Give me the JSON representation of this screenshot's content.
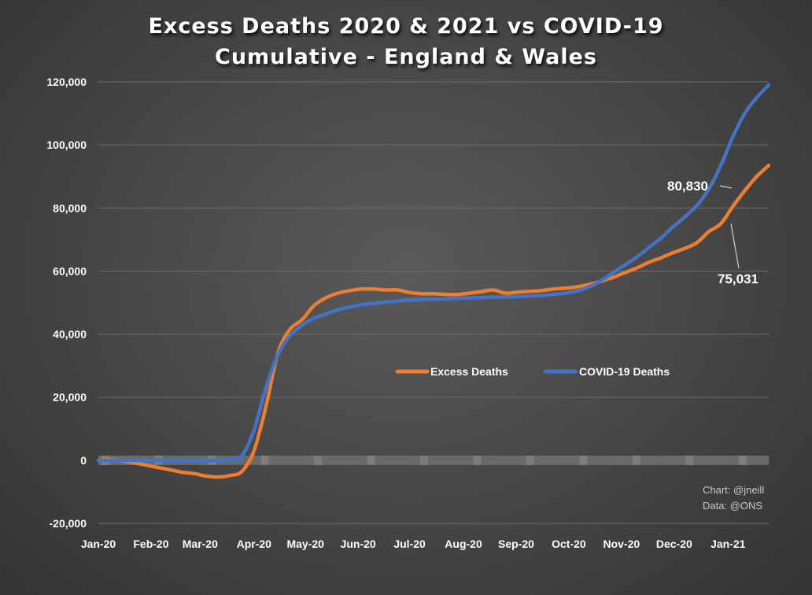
{
  "header": {
    "title_line1": "Excess Deaths 2020 & 2021 vs COVID-19",
    "title_line2": "Cumulative - England & Wales"
  },
  "credits": {
    "chart": "Chart: @jneill",
    "data": "Data: @ONS"
  },
  "colors": {
    "excess": "#ed7d31",
    "covid": "#4472c4",
    "grid": "#6e6e6e",
    "zero_band": "#6a6a6a"
  },
  "chart_data": {
    "type": "line",
    "title": "Excess Deaths 2020 & 2021 vs COVID-19 Cumulative - England & Wales",
    "xlabel": "",
    "ylabel": "",
    "ylim": [
      -20000,
      120000
    ],
    "yticks": [
      -20000,
      0,
      20000,
      40000,
      60000,
      80000,
      100000,
      120000
    ],
    "ytick_labels": [
      "-20,000",
      "0",
      "20,000",
      "40,000",
      "60,000",
      "80,000",
      "100,000",
      "120,000"
    ],
    "x_unit": "week",
    "xlim": [
      0,
      56
    ],
    "x_categories": [
      "Jan-20",
      "Feb-20",
      "Mar-20",
      "Apr-20",
      "May-20",
      "Jun-20",
      "Jul-20",
      "Aug-20",
      "Sep-20",
      "Oct-20",
      "Nov-20",
      "Dec-20",
      "Jan-21"
    ],
    "x_category_week": [
      0,
      4.4,
      8.5,
      13,
      17.3,
      21.7,
      26,
      30.5,
      34.9,
      39.3,
      43.7,
      48.1,
      52.6
    ],
    "grid": true,
    "legend_position": "middle-right",
    "series": [
      {
        "name": "Excess Deaths",
        "x": [
          0,
          1,
          2,
          3,
          4,
          5,
          6,
          7,
          8,
          9,
          10,
          11,
          12,
          13,
          14,
          15,
          16,
          17,
          18,
          19,
          20,
          21,
          22,
          23,
          24,
          25,
          26,
          27,
          28,
          29,
          30,
          31,
          32,
          33,
          34,
          35,
          36,
          37,
          38,
          39,
          40,
          41,
          42,
          43,
          44,
          45,
          46,
          47,
          48,
          49,
          50,
          51,
          52,
          53,
          54,
          55,
          56
        ],
        "y": [
          0,
          300,
          -200,
          -800,
          -1500,
          -2300,
          -3000,
          -3800,
          -4200,
          -5000,
          -5300,
          -4800,
          -3500,
          3000,
          17000,
          34000,
          41500,
          44500,
          49000,
          51500,
          53000,
          53800,
          54300,
          54300,
          54000,
          54000,
          53200,
          52800,
          52800,
          52600,
          52600,
          53000,
          53500,
          54000,
          53000,
          53300,
          53600,
          53800,
          54300,
          54600,
          55000,
          55800,
          56800,
          58000,
          59500,
          61000,
          62800,
          64200,
          65800,
          67200,
          69000,
          72500,
          75031,
          80500,
          85500,
          90000,
          93500
        ]
      },
      {
        "name": "COVID-19 Deaths",
        "x": [
          0,
          1,
          2,
          3,
          4,
          5,
          6,
          7,
          8,
          9,
          10,
          11,
          12,
          13,
          14,
          15,
          16,
          17,
          18,
          19,
          20,
          21,
          22,
          23,
          24,
          25,
          26,
          27,
          28,
          29,
          30,
          31,
          32,
          33,
          34,
          35,
          36,
          37,
          38,
          39,
          40,
          41,
          42,
          43,
          44,
          45,
          46,
          47,
          48,
          49,
          50,
          51,
          52,
          53,
          54,
          55,
          56
        ],
        "y": [
          0,
          0,
          0,
          0,
          0,
          0,
          0,
          0,
          0,
          0,
          0,
          200,
          1500,
          9500,
          23000,
          33500,
          39500,
          42800,
          45000,
          46400,
          47700,
          48600,
          49300,
          49800,
          50200,
          50500,
          50800,
          51000,
          51100,
          51200,
          51400,
          51500,
          51600,
          51700,
          51800,
          51900,
          52100,
          52300,
          52600,
          53000,
          53700,
          55000,
          57000,
          59500,
          62000,
          64500,
          67500,
          70500,
          74000,
          77200,
          80830,
          86000,
          93500,
          102500,
          110000,
          115000,
          119000
        ]
      }
    ],
    "annotations": [
      {
        "label": "80,830",
        "series": "COVID-19 Deaths",
        "x": 50,
        "y": 80830
      },
      {
        "label": "75,031",
        "series": "Excess Deaths",
        "x": 52,
        "y": 75031
      }
    ]
  }
}
